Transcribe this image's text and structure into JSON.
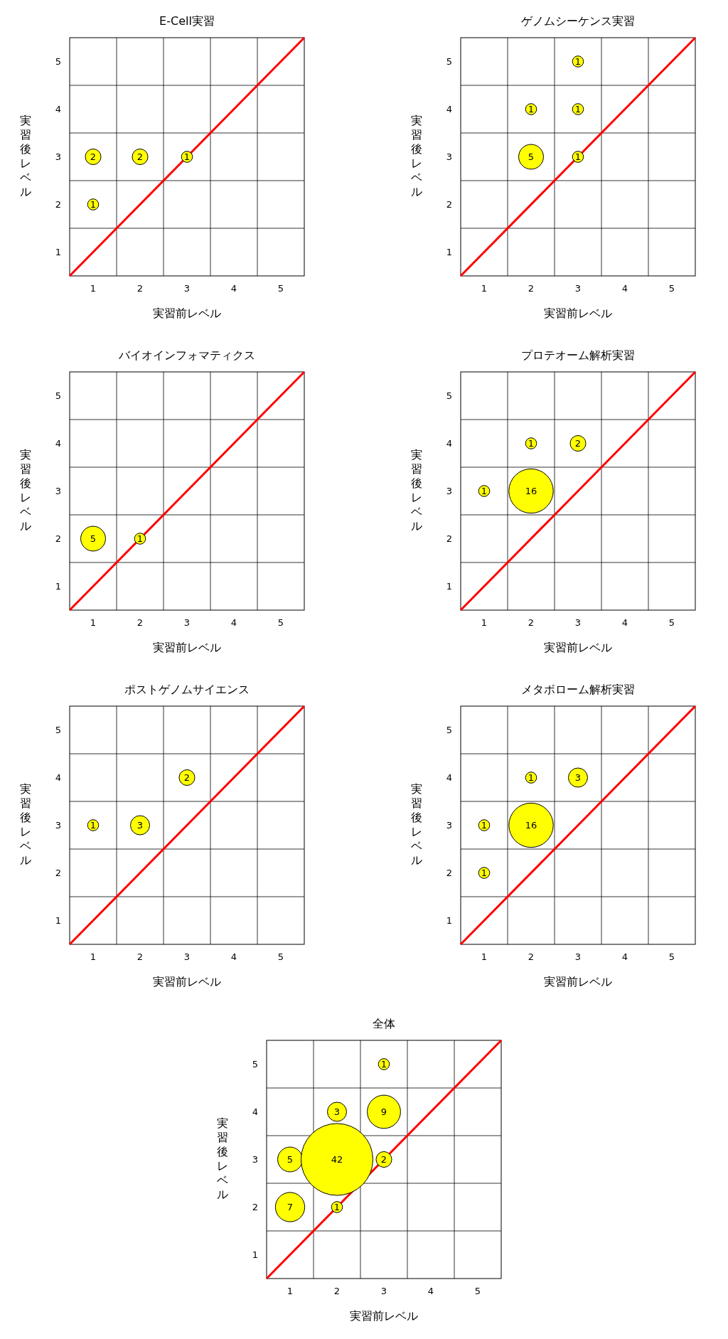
{
  "chart_data": [
    {
      "type": "bubble",
      "title": "E-Cell実習",
      "xlabel": "実習前レベル",
      "ylabel": "実習後レベル",
      "xlim": [
        0.5,
        5.5
      ],
      "ylim": [
        0.5,
        5.5
      ],
      "xticks": [
        1,
        {
          "value": 1.5,
          "label": null
        },
        2,
        {
          "value": 2.5,
          "label": null
        },
        3,
        {
          "value": 3.5,
          "label": null
        },
        4,
        {
          "value": 4.5,
          "label": null
        },
        5
      ],
      "yticks": [
        1,
        {
          "value": 1.5,
          "label": null
        },
        2,
        {
          "value": 2.5,
          "label": null
        },
        3,
        {
          "value": 3.5,
          "label": null
        },
        4,
        {
          "value": 4.5,
          "label": null
        },
        5
      ],
      "grid": true,
      "series": [
        {
          "type": "line",
          "color": "#ff0000",
          "x": [
            0.5,
            5.5
          ],
          "values": [
            0.5,
            5.5
          ]
        },
        {
          "type": "bubble",
          "color": "#ffff00",
          "x": [
            1,
            2,
            3,
            1
          ],
          "values": [
            3,
            3,
            3,
            2
          ],
          "sizes": [
            2,
            2,
            1,
            1
          ],
          "value_labels": [
            "2",
            "2",
            "1",
            "1"
          ]
        }
      ]
    },
    {
      "type": "bubble",
      "title": "ゲノムシーケンス実習",
      "xlabel": "実習前レベル",
      "ylabel": "実習後レベル",
      "xlim": [
        0.5,
        5.5
      ],
      "ylim": [
        0.5,
        5.5
      ],
      "xticks": [
        1,
        {
          "value": 1.5,
          "label": null
        },
        2,
        {
          "value": 2.5,
          "label": null
        },
        3,
        {
          "value": 3.5,
          "label": null
        },
        4,
        {
          "value": 4.5,
          "label": null
        },
        5
      ],
      "yticks": [
        1,
        {
          "value": 1.5,
          "label": null
        },
        2,
        {
          "value": 2.5,
          "label": null
        },
        3,
        {
          "value": 3.5,
          "label": null
        },
        4,
        {
          "value": 4.5,
          "label": null
        },
        5
      ],
      "grid": true,
      "series": [
        {
          "type": "line",
          "color": "#ff0000",
          "x": [
            0.5,
            5.5
          ],
          "values": [
            0.5,
            5.5
          ]
        },
        {
          "type": "bubble",
          "color": "#ffff00",
          "x": [
            3,
            2,
            3,
            2,
            3
          ],
          "values": [
            5,
            4,
            4,
            3,
            3
          ],
          "sizes": [
            1,
            1,
            1,
            5,
            1
          ],
          "value_labels": [
            "1",
            "1",
            "1",
            "5",
            "1"
          ]
        }
      ]
    },
    {
      "type": "bubble",
      "title": "バイオインフォマティクス",
      "xlabel": "実習前レベル",
      "ylabel": "実習後レベル",
      "xlim": [
        0.5,
        5.5
      ],
      "ylim": [
        0.5,
        5.5
      ],
      "xticks": [
        1,
        {
          "value": 1.5,
          "label": null
        },
        2,
        {
          "value": 2.5,
          "label": null
        },
        3,
        {
          "value": 3.5,
          "label": null
        },
        4,
        {
          "value": 4.5,
          "label": null
        },
        5
      ],
      "yticks": [
        1,
        {
          "value": 1.5,
          "label": null
        },
        2,
        {
          "value": 2.5,
          "label": null
        },
        3,
        {
          "value": 3.5,
          "label": null
        },
        4,
        {
          "value": 4.5,
          "label": null
        },
        5
      ],
      "grid": true,
      "series": [
        {
          "type": "line",
          "color": "#ff0000",
          "x": [
            0.5,
            5.5
          ],
          "values": [
            0.5,
            5.5
          ]
        },
        {
          "type": "bubble",
          "color": "#ffff00",
          "x": [
            1,
            2
          ],
          "values": [
            2,
            2
          ],
          "sizes": [
            5,
            1
          ],
          "value_labels": [
            "5",
            "1"
          ]
        }
      ]
    },
    {
      "type": "bubble",
      "title": "プロテオーム解析実習",
      "xlabel": "実習前レベル",
      "ylabel": "実習後レベル",
      "xlim": [
        0.5,
        5.5
      ],
      "ylim": [
        0.5,
        5.5
      ],
      "xticks": [
        1,
        {
          "value": 1.5,
          "label": null
        },
        2,
        {
          "value": 2.5,
          "label": null
        },
        3,
        {
          "value": 3.5,
          "label": null
        },
        4,
        {
          "value": 4.5,
          "label": null
        },
        5
      ],
      "yticks": [
        1,
        {
          "value": 1.5,
          "label": null
        },
        2,
        {
          "value": 2.5,
          "label": null
        },
        3,
        {
          "value": 3.5,
          "label": null
        },
        4,
        {
          "value": 4.5,
          "label": null
        },
        5
      ],
      "grid": true,
      "series": [
        {
          "type": "line",
          "color": "#ff0000",
          "x": [
            0.5,
            5.5
          ],
          "values": [
            0.5,
            5.5
          ]
        },
        {
          "type": "bubble",
          "color": "#ffff00",
          "x": [
            2,
            3,
            1,
            2
          ],
          "values": [
            4,
            4,
            3,
            3
          ],
          "sizes": [
            1,
            2,
            1,
            16
          ],
          "value_labels": [
            "1",
            "2",
            "1",
            "16"
          ]
        }
      ]
    },
    {
      "type": "bubble",
      "title": "ポストゲノムサイエンス",
      "xlabel": "実習前レベル",
      "ylabel": "実習後レベル",
      "xlim": [
        0.5,
        5.5
      ],
      "ylim": [
        0.5,
        5.5
      ],
      "xticks": [
        1,
        {
          "value": 1.5,
          "label": null
        },
        2,
        {
          "value": 2.5,
          "label": null
        },
        3,
        {
          "value": 3.5,
          "label": null
        },
        4,
        {
          "value": 4.5,
          "label": null
        },
        5
      ],
      "yticks": [
        1,
        {
          "value": 1.5,
          "label": null
        },
        2,
        {
          "value": 2.5,
          "label": null
        },
        3,
        {
          "value": 3.5,
          "label": null
        },
        4,
        {
          "value": 4.5,
          "label": null
        },
        5
      ],
      "grid": true,
      "series": [
        {
          "type": "line",
          "color": "#ff0000",
          "x": [
            0.5,
            5.5
          ],
          "values": [
            0.5,
            5.5
          ]
        },
        {
          "type": "bubble",
          "color": "#ffff00",
          "x": [
            3,
            1,
            2
          ],
          "values": [
            4,
            3,
            3
          ],
          "sizes": [
            2,
            1,
            3
          ],
          "value_labels": [
            "2",
            "1",
            "3"
          ]
        }
      ]
    },
    {
      "type": "bubble",
      "title": "メタボローム解析実習",
      "xlabel": "実習前レベル",
      "ylabel": "実習後レベル",
      "xlim": [
        0.5,
        5.5
      ],
      "ylim": [
        0.5,
        5.5
      ],
      "xticks": [
        1,
        {
          "value": 1.5,
          "label": null
        },
        2,
        {
          "value": 2.5,
          "label": null
        },
        3,
        {
          "value": 3.5,
          "label": null
        },
        4,
        {
          "value": 4.5,
          "label": null
        },
        5
      ],
      "yticks": [
        1,
        {
          "value": 1.5,
          "label": null
        },
        2,
        {
          "value": 2.5,
          "label": null
        },
        3,
        {
          "value": 3.5,
          "label": null
        },
        4,
        {
          "value": 4.5,
          "label": null
        },
        5
      ],
      "grid": true,
      "series": [
        {
          "type": "line",
          "color": "#ff0000",
          "x": [
            0.5,
            5.5
          ],
          "values": [
            0.5,
            5.5
          ]
        },
        {
          "type": "bubble",
          "color": "#ffff00",
          "x": [
            2,
            3,
            1,
            2,
            1
          ],
          "values": [
            4,
            4,
            3,
            3,
            2
          ],
          "sizes": [
            1,
            3,
            1,
            16,
            1
          ],
          "value_labels": [
            "1",
            "3",
            "1",
            "16",
            "1"
          ]
        }
      ]
    },
    {
      "type": "bubble",
      "title": "全体",
      "xlabel": "実習前レベル",
      "ylabel": "実習後レベル",
      "xlim": [
        0.5,
        5.5
      ],
      "ylim": [
        0.5,
        5.5
      ],
      "xticks": [
        1,
        {
          "value": 1.5,
          "label": null
        },
        2,
        {
          "value": 2.5,
          "label": null
        },
        3,
        {
          "value": 3.5,
          "label": null
        },
        4,
        {
          "value": 4.5,
          "label": null
        },
        5
      ],
      "yticks": [
        1,
        {
          "value": 1.5,
          "label": null
        },
        2,
        {
          "value": 2.5,
          "label": null
        },
        3,
        {
          "value": 3.5,
          "label": null
        },
        4,
        {
          "value": 4.5,
          "label": null
        },
        5
      ],
      "grid": true,
      "series": [
        {
          "type": "line",
          "color": "#ff0000",
          "x": [
            0.5,
            5.5
          ],
          "values": [
            0.5,
            5.5
          ]
        },
        {
          "type": "bubble",
          "color": "#ffff00",
          "x": [
            3,
            2,
            3,
            1,
            2,
            3,
            1,
            2
          ],
          "values": [
            5,
            4,
            4,
            3,
            3,
            3,
            2,
            2
          ],
          "sizes": [
            1,
            3,
            9,
            5,
            42,
            2,
            7,
            1
          ],
          "value_labels": [
            "1",
            "3",
            "9",
            "5",
            "42",
            "2",
            "7",
            "1"
          ]
        }
      ]
    }
  ]
}
